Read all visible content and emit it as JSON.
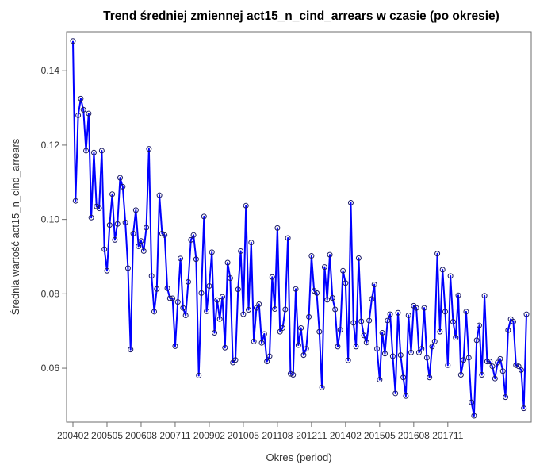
{
  "chart_data": {
    "type": "line",
    "title": "Trend średniej zmiennej act15_n_cind_arrears w czasie (po okresie)",
    "xlabel": "Okres (period)",
    "ylabel": "Średnia wartość act15_n_cind_arrears",
    "x_tick_labels": [
      "200402",
      "200505",
      "200608",
      "200711",
      "200902",
      "201005",
      "201108",
      "201211",
      "201402",
      "201505",
      "201608",
      "201711"
    ],
    "y_ticks": [
      0.06,
      0.08,
      0.1,
      0.12,
      0.14
    ],
    "y_tick_labels": [
      "0.06",
      "0.08",
      "0.10",
      "0.12",
      "0.14"
    ],
    "ylim": [
      0.0455,
      0.1505
    ],
    "grid": false,
    "line_color": "#0000ff",
    "marker": "open-circle",
    "series": [
      {
        "values": [
          0.148,
          0.105,
          0.128,
          0.1325,
          0.1295,
          0.1185,
          0.1285,
          0.1005,
          0.118,
          0.1035,
          0.103,
          0.1185,
          0.092,
          0.0862,
          0.0985,
          0.1068,
          0.0945,
          0.0988,
          0.1112,
          0.1088,
          0.0992,
          0.0869,
          0.065,
          0.0962,
          0.1025,
          0.0928,
          0.0942,
          0.0915,
          0.0978,
          0.119,
          0.0848,
          0.0752,
          0.0813,
          0.1065,
          0.0962,
          0.0958,
          0.0815,
          0.0788,
          0.0788,
          0.0659,
          0.0778,
          0.0895,
          0.0762,
          0.0742,
          0.0832,
          0.0945,
          0.0958,
          0.0893,
          0.058,
          0.0802,
          0.1008,
          0.0753,
          0.0821,
          0.0912,
          0.0695,
          0.0783,
          0.0732,
          0.0792,
          0.0655,
          0.0884,
          0.0842,
          0.0615,
          0.0622,
          0.0812,
          0.0915,
          0.0745,
          0.1037,
          0.0757,
          0.0938,
          0.0672,
          0.0762,
          0.0772,
          0.0668,
          0.0692,
          0.0618,
          0.0632,
          0.0845,
          0.0759,
          0.0977,
          0.0698,
          0.0708,
          0.0758,
          0.095,
          0.0585,
          0.0582,
          0.0813,
          0.0662,
          0.0708,
          0.0635,
          0.0652,
          0.0738,
          0.0902,
          0.0808,
          0.0802,
          0.0698,
          0.0548,
          0.0872,
          0.0784,
          0.0905,
          0.0789,
          0.0758,
          0.0658,
          0.0703,
          0.0862,
          0.0829,
          0.0621,
          0.1045,
          0.0722,
          0.0658,
          0.0896,
          0.0726,
          0.0688,
          0.0669,
          0.0728,
          0.0786,
          0.0825,
          0.0652,
          0.0569,
          0.0695,
          0.0639,
          0.0728,
          0.0745,
          0.0632,
          0.0532,
          0.0749,
          0.0635,
          0.0575,
          0.0525,
          0.0742,
          0.0642,
          0.0768,
          0.0762,
          0.0642,
          0.0652,
          0.0762,
          0.0628,
          0.0575,
          0.0658,
          0.0672,
          0.0908,
          0.0698,
          0.0865,
          0.0752,
          0.0608,
          0.0848,
          0.0725,
          0.0682,
          0.0796,
          0.0582,
          0.0622,
          0.0752,
          0.0628,
          0.0508,
          0.0472,
          0.0675,
          0.0715,
          0.0582,
          0.0795,
          0.0618,
          0.0618,
          0.0605,
          0.0572,
          0.0615,
          0.0625,
          0.0592,
          0.0522,
          0.0702,
          0.0732,
          0.0725,
          0.0608,
          0.0605,
          0.0595,
          0.0492,
          0.0745
        ]
      }
    ]
  }
}
